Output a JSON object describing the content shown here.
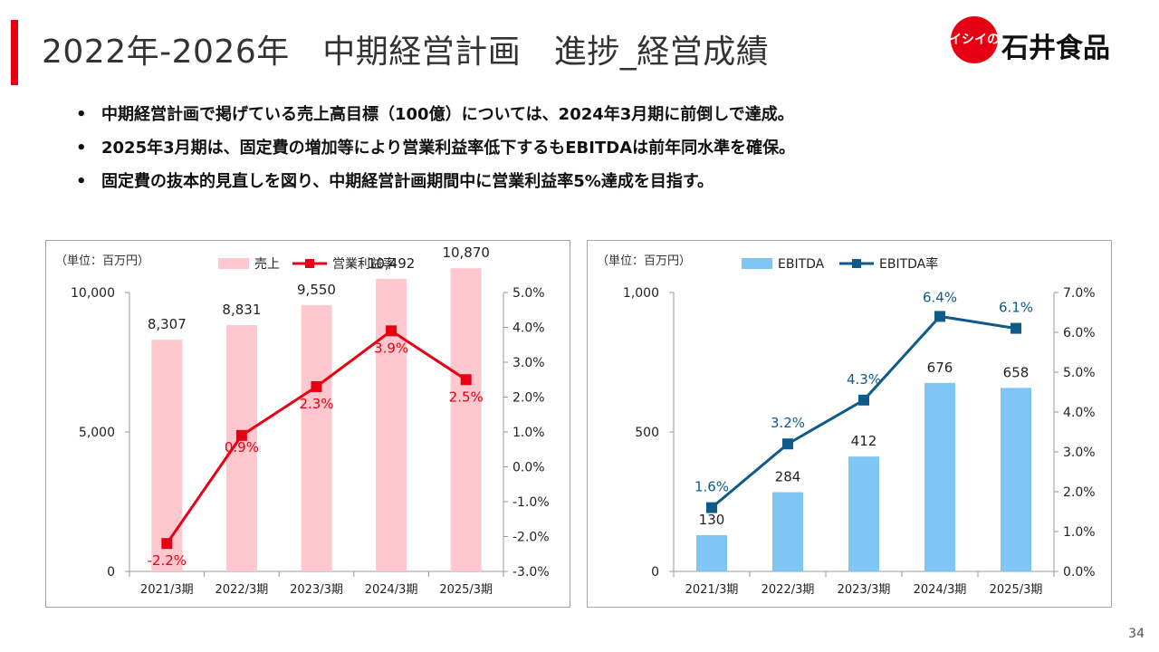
{
  "title": "2022年-2026年　中期経営計画　進捗_経営成績",
  "logo": {
    "mark_text": "イシイの",
    "name": "石井食品"
  },
  "bullets": [
    "中期経営計画で掲げている売上高目標（100億）については、2024年3月期に前倒しで達成。",
    "2025年3月期は、固定費の増加等により営業利益率低下するもEBITDAは前年同水準を確保。",
    "固定費の抜本的見直しを図り、中期経営計画期間中に営業利益率5%達成を目指す。"
  ],
  "bullet_marker": "•",
  "page_number": "34",
  "chart_data": [
    {
      "type": "bar+line",
      "unit_note": "（単位：百万円）",
      "categories": [
        "2021/3期",
        "2022/3期",
        "2023/3期",
        "2024/3期",
        "2025/3期"
      ],
      "bar_series": {
        "name": "売上",
        "values": [
          8307,
          8831,
          9550,
          10492,
          10870
        ],
        "labels": [
          "8,307",
          "8,831",
          "9,550",
          "10,492",
          "10,870"
        ],
        "color": "#ffc7ce"
      },
      "line_series": {
        "name": "営業利益率",
        "values": [
          -2.2,
          0.9,
          2.3,
          3.9,
          2.5
        ],
        "labels": [
          "-2.2%",
          "0.9%",
          "2.3%",
          "3.9%",
          "2.5%"
        ],
        "color": "#e60012"
      },
      "y_left": {
        "ylim": [
          0,
          10000
        ],
        "ticks": [
          0,
          5000,
          10000
        ],
        "tick_labels": [
          "0",
          "5,000",
          "10,000"
        ]
      },
      "y_right": {
        "ylim": [
          -3.0,
          5.0
        ],
        "ticks": [
          -3,
          -2,
          -1,
          0,
          1,
          2,
          3,
          4,
          5
        ],
        "tick_labels": [
          "-3.0%",
          "-2.0%",
          "-1.0%",
          "0.0%",
          "1.0%",
          "2.0%",
          "3.0%",
          "4.0%",
          "5.0%"
        ]
      },
      "legend_position": "top",
      "grid": false
    },
    {
      "type": "bar+line",
      "unit_note": "（単位：百万円）",
      "categories": [
        "2021/3期",
        "2022/3期",
        "2023/3期",
        "2024/3期",
        "2025/3期"
      ],
      "bar_series": {
        "name": "EBITDA",
        "values": [
          130,
          284,
          412,
          676,
          658
        ],
        "labels": [
          "130",
          "284",
          "412",
          "676",
          "658"
        ],
        "color": "#7fc6f5"
      },
      "line_series": {
        "name": "EBITDA率",
        "values": [
          1.6,
          3.2,
          4.3,
          6.4,
          6.1
        ],
        "labels": [
          "1.6%",
          "3.2%",
          "4.3%",
          "6.4%",
          "6.1%"
        ],
        "color": "#0e5a8a"
      },
      "y_left": {
        "ylim": [
          0,
          1000
        ],
        "ticks": [
          0,
          500,
          1000
        ],
        "tick_labels": [
          "0",
          "500",
          "1,000"
        ]
      },
      "y_right": {
        "ylim": [
          0,
          7.0
        ],
        "ticks": [
          0,
          1,
          2,
          3,
          4,
          5,
          6,
          7
        ],
        "tick_labels": [
          "0.0%",
          "1.0%",
          "2.0%",
          "3.0%",
          "4.0%",
          "5.0%",
          "6.0%",
          "7.0%"
        ]
      },
      "legend_position": "top",
      "grid": false
    }
  ]
}
